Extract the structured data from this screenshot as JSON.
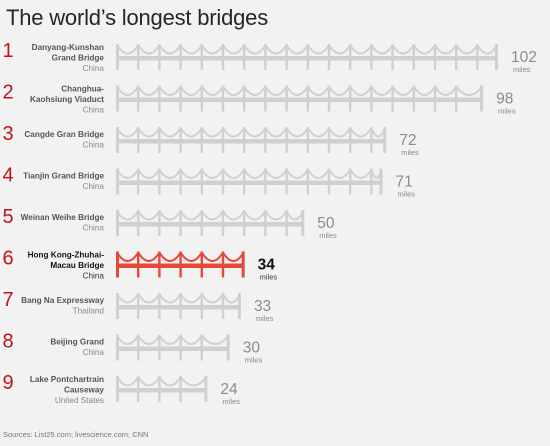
{
  "title": "The world’s longest bridges",
  "source": "Sources: List25.com; livescience.com; CNN",
  "colors": {
    "normal": "#d0d0d0",
    "highlight": "#e8473c",
    "rank": "#c0141a",
    "valueNormal": "#8c8c8c",
    "valueHighlight": "#111111"
  },
  "chart_data": {
    "type": "bar",
    "title": "The world’s longest bridges",
    "unit": "miles",
    "highlight_index": 5,
    "xlim": [
      0,
      102
    ],
    "bars": [
      {
        "rank": "1",
        "name_lines": [
          "Danyang-Kunshan",
          "Grand Bridge"
        ],
        "country": "China",
        "value": 102
      },
      {
        "rank": "2",
        "name_lines": [
          "Changhua-",
          "Kaohsiung Viaduct"
        ],
        "country": "China",
        "value": 98
      },
      {
        "rank": "3",
        "name_lines": [
          "Cangde Gran Bridge"
        ],
        "country": "China",
        "value": 72
      },
      {
        "rank": "4",
        "name_lines": [
          "Tianjin Grand Bridge"
        ],
        "country": "China",
        "value": 71
      },
      {
        "rank": "5",
        "name_lines": [
          "Weinan Weihe Bridge"
        ],
        "country": "China",
        "value": 50
      },
      {
        "rank": "6",
        "name_lines": [
          "Hong Kong-Zhuhai-",
          "Macau Bridge"
        ],
        "country": "China",
        "value": 34
      },
      {
        "rank": "7",
        "name_lines": [
          "Bang Na Expressway"
        ],
        "country": "Thailand",
        "value": 33
      },
      {
        "rank": "8",
        "name_lines": [
          "Beijing Grand"
        ],
        "country": "China",
        "value": 30
      },
      {
        "rank": "9",
        "name_lines": [
          "Lake Pontchartrain",
          "Causeway"
        ],
        "country": "United States",
        "value": 24
      }
    ]
  }
}
